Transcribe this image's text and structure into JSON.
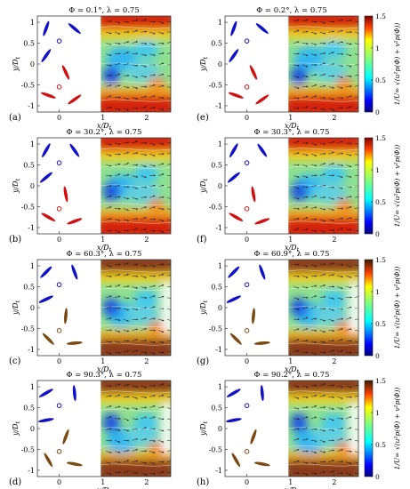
{
  "panels": [
    {
      "id": "a",
      "tag": "(a)",
      "title": "Φ = 0.1°, λ = 0.75",
      "blade_angles": [
        -70,
        40,
        -55,
        65,
        20,
        -35
      ],
      "blade_colors": [
        "#1010c8",
        "#1010c8",
        "#1010c8",
        "#d01010",
        "#d01010",
        "#d01010"
      ],
      "marker_colors": [
        "#1010c8",
        "#d01010"
      ],
      "colorbar": "jet"
    },
    {
      "id": "b",
      "tag": "(b)",
      "title": "Φ = 30.2°, λ = 0.75",
      "blade_angles": [
        -60,
        55,
        -40,
        80,
        30,
        -20
      ],
      "blade_colors": [
        "#1010c8",
        "#1010c8",
        "#1010c8",
        "#d01010",
        "#d01010",
        "#d01010"
      ],
      "marker_colors": [
        "#1010c8",
        "#d01010"
      ],
      "colorbar": "jet"
    },
    {
      "id": "c",
      "tag": "(c)",
      "title": "Φ = 60.3°, λ = 0.75",
      "blade_angles": [
        -45,
        70,
        -25,
        95,
        45,
        -5
      ],
      "blade_colors": [
        "#1010c8",
        "#1010c8",
        "#1010c8",
        "#7a4a12",
        "#7a4a12",
        "#7a4a12"
      ],
      "marker_colors": [
        "#1010c8",
        "#7a4a12"
      ],
      "colorbar": "jetbrown"
    },
    {
      "id": "d",
      "tag": "(d)",
      "title": "Φ = 90.3°, λ = 0.75",
      "blade_angles": [
        -30,
        85,
        -10,
        110,
        60,
        10
      ],
      "blade_colors": [
        "#1010c8",
        "#1010c8",
        "#1010c8",
        "#7a4a12",
        "#7a4a12",
        "#7a4a12"
      ],
      "marker_colors": [
        "#1010c8",
        "#7a4a12"
      ],
      "colorbar": "jetbrown"
    },
    {
      "id": "e",
      "tag": "(e)",
      "title": "Φ = 0.2°, λ = 0.75",
      "blade_angles": [
        -70,
        40,
        -55,
        65,
        20,
        -35
      ],
      "blade_colors": [
        "#1010c8",
        "#1010c8",
        "#1010c8",
        "#d01010",
        "#d01010",
        "#d01010"
      ],
      "marker_colors": [
        "#1010c8",
        "#d01010"
      ],
      "colorbar": "jet"
    },
    {
      "id": "f",
      "tag": "(f)",
      "title": "Φ = 30.3°, λ = 0.75",
      "blade_angles": [
        -60,
        55,
        -40,
        80,
        30,
        -20
      ],
      "blade_colors": [
        "#1010c8",
        "#1010c8",
        "#1010c8",
        "#d01010",
        "#d01010",
        "#d01010"
      ],
      "marker_colors": [
        "#1010c8",
        "#d01010"
      ],
      "colorbar": "jet"
    },
    {
      "id": "g",
      "tag": "(g)",
      "title": "Φ = 60.9°, λ = 0.75",
      "blade_angles": [
        -45,
        70,
        -25,
        95,
        45,
        -5
      ],
      "blade_colors": [
        "#1010c8",
        "#1010c8",
        "#1010c8",
        "#7a4a12",
        "#7a4a12",
        "#7a4a12"
      ],
      "marker_colors": [
        "#1010c8",
        "#7a4a12"
      ],
      "colorbar": "jetbrown"
    },
    {
      "id": "h",
      "tag": "(h)",
      "title": "Φ = 90.2°, λ = 0.75",
      "blade_angles": [
        -30,
        85,
        -10,
        110,
        60,
        10
      ],
      "blade_colors": [
        "#1010c8",
        "#1010c8",
        "#1010c8",
        "#7a4a12",
        "#7a4a12",
        "#7a4a12"
      ],
      "marker_colors": [
        "#1010c8",
        "#7a4a12"
      ],
      "colorbar": "jetbrown"
    }
  ],
  "axes": {
    "xlabel": "x/D",
    "xlabel_sub": "t",
    "ylabel": "y/D",
    "ylabel_sub": "t",
    "xticks": [
      "0",
      "1",
      "2"
    ],
    "yticks": [
      "1",
      "0.5",
      "0",
      "-0.5",
      "-1"
    ]
  },
  "colorbar": {
    "ticks": [
      "1.5",
      "1",
      "0.5",
      "0"
    ],
    "range": [
      0,
      1.5
    ],
    "label": "1/U∞ √(u²p(Φ) + v²p(Φ))"
  }
}
